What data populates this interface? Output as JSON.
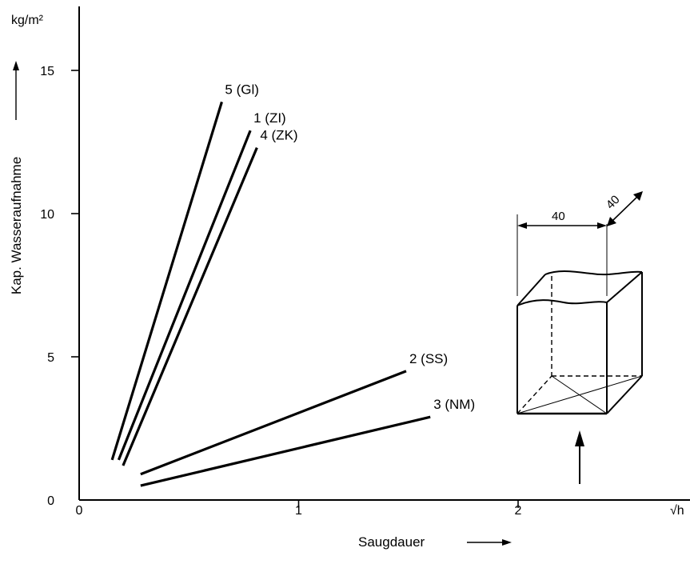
{
  "chart_data": {
    "type": "line",
    "title": "",
    "ylabel": "Kap. Wasseraufnahme",
    "yunit": "kg/m²",
    "xlabel": "Saugdauer",
    "xunit": "√h",
    "xlim": [
      0,
      2.8
    ],
    "ylim": [
      0,
      17
    ],
    "x_ticks": [
      {
        "value": 0,
        "label": "0"
      },
      {
        "value": 1,
        "label": "1"
      },
      {
        "value": 2,
        "label": "2"
      }
    ],
    "y_ticks": [
      {
        "value": 0,
        "label": "0"
      },
      {
        "value": 5,
        "label": "5"
      },
      {
        "value": 10,
        "label": "10"
      },
      {
        "value": 15,
        "label": "15"
      }
    ],
    "grid": false,
    "legend": "none",
    "series": [
      {
        "name": "5 (Gl)",
        "x": [
          0.15,
          0.65
        ],
        "y": [
          1.4,
          13.9
        ]
      },
      {
        "name": "1 (ZI)",
        "x": [
          0.18,
          0.78
        ],
        "y": [
          1.4,
          12.9
        ]
      },
      {
        "name": "4 (ZK)",
        "x": [
          0.2,
          0.81
        ],
        "y": [
          1.2,
          12.3
        ]
      },
      {
        "name": "2 (SS)",
        "x": [
          0.28,
          1.49
        ],
        "y": [
          0.9,
          4.5
        ]
      },
      {
        "name": "3 (NM)",
        "x": [
          0.28,
          1.6
        ],
        "y": [
          0.5,
          2.9
        ]
      }
    ],
    "inset": {
      "description_labels": [
        "40",
        "40"
      ]
    }
  }
}
